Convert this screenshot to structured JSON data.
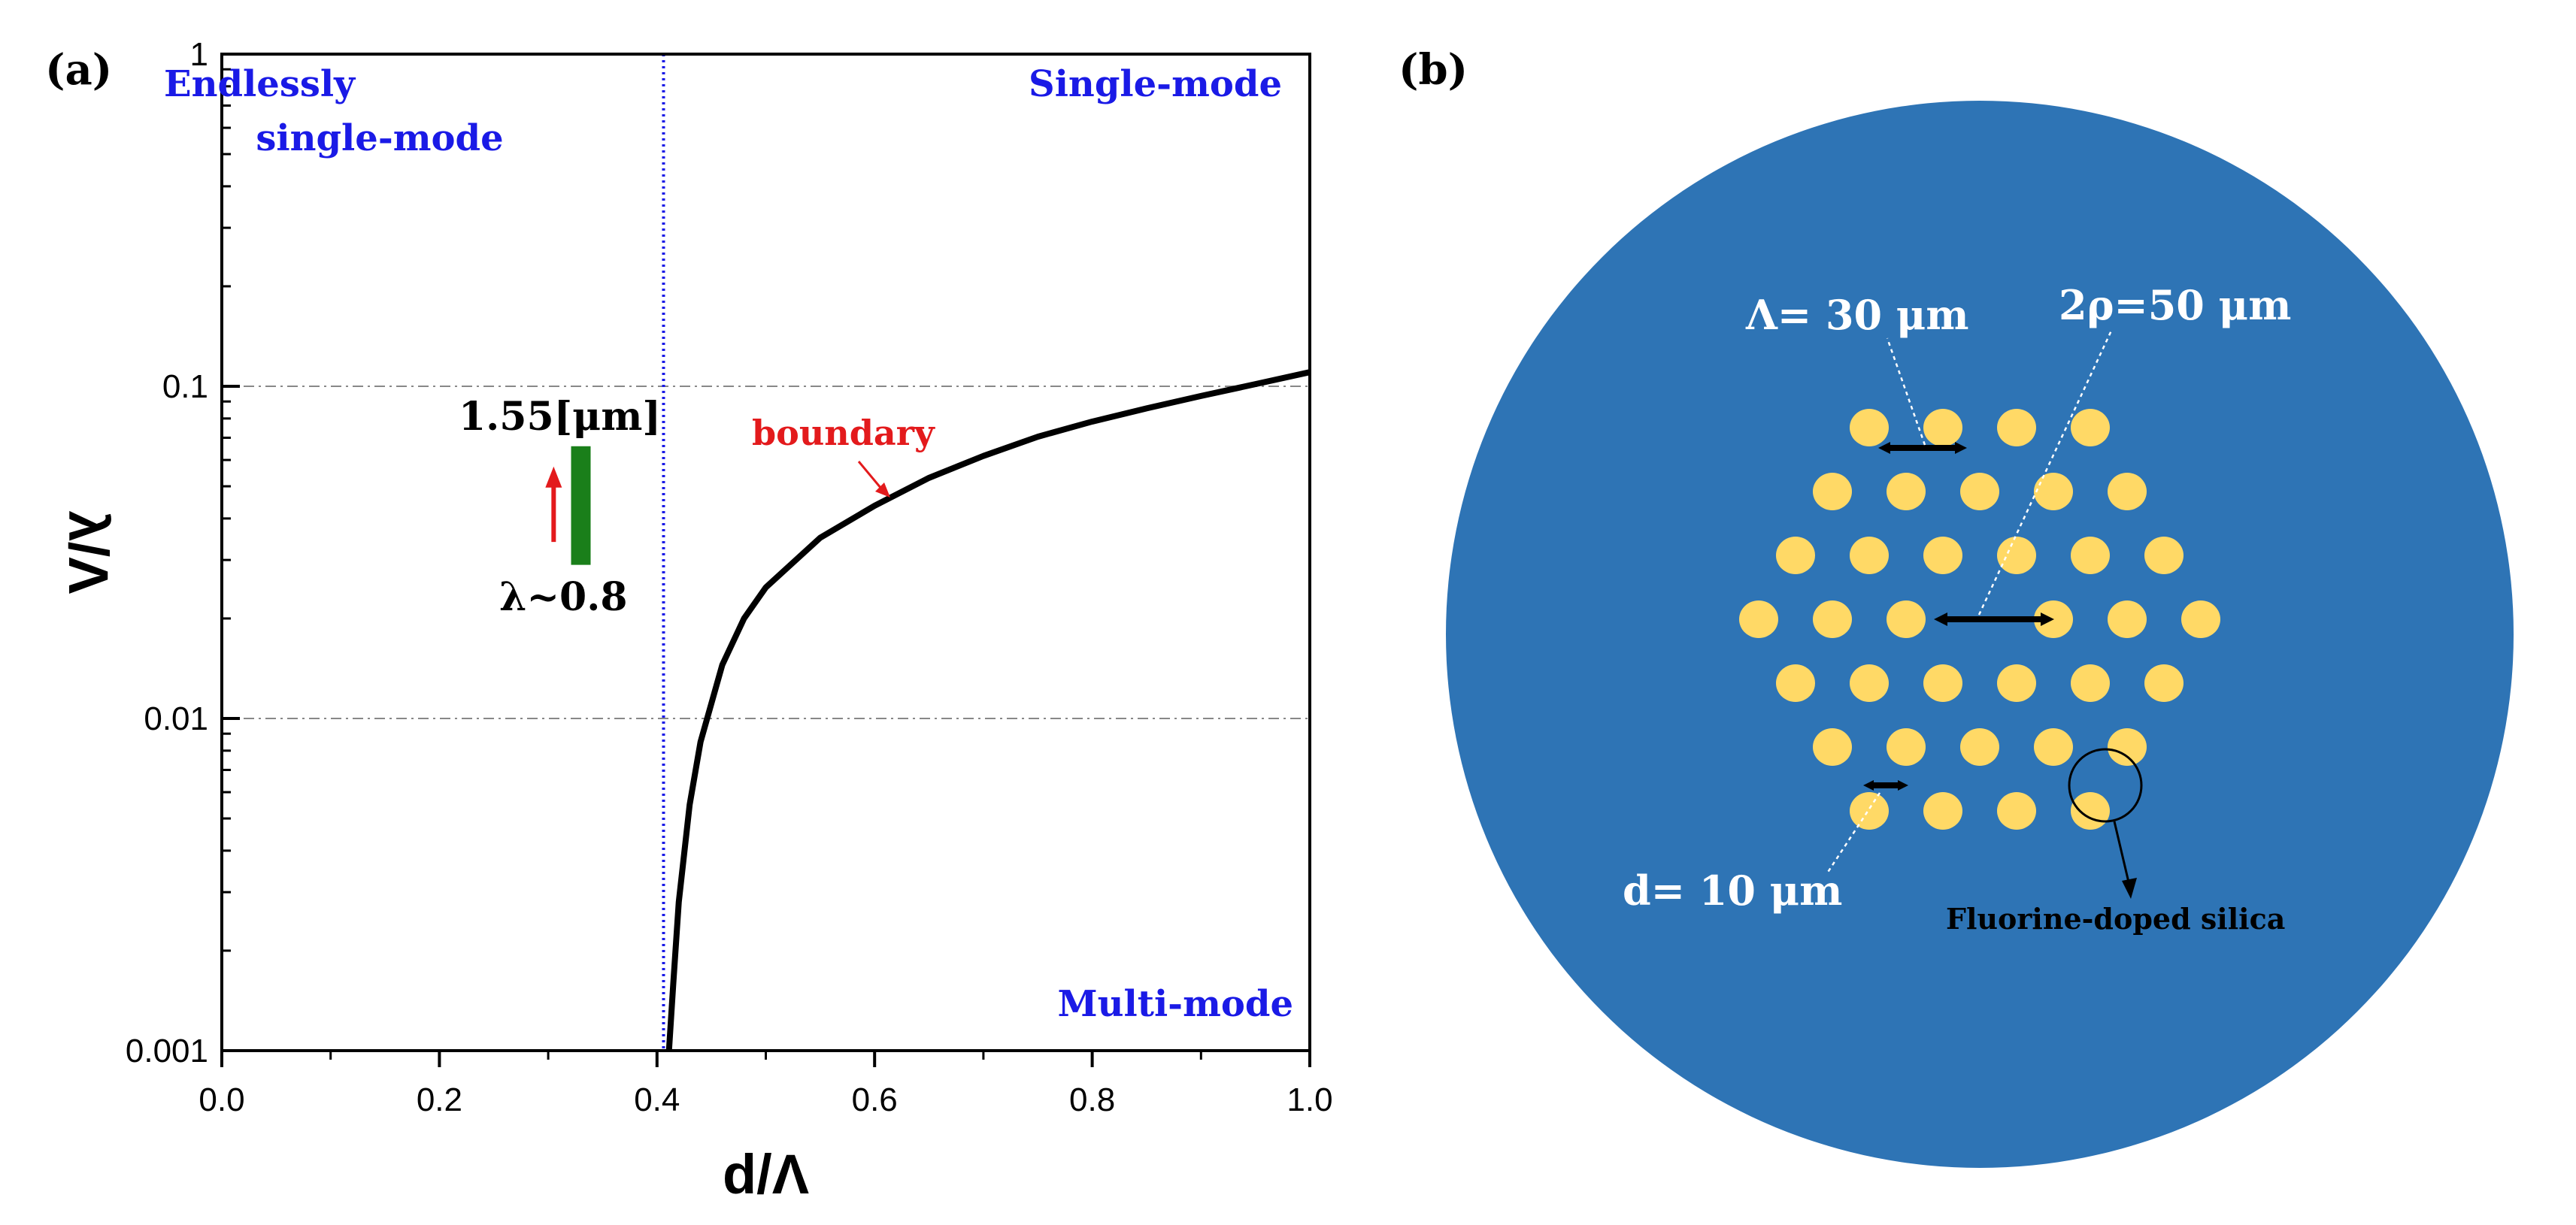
{
  "chart_data": {
    "type": "line",
    "panel_label": "(a)",
    "xlabel": "d/Λ",
    "ylabel": "λ/Λ",
    "xlim": [
      0.0,
      1.0
    ],
    "ylim": [
      0.001,
      1
    ],
    "yscale": "log",
    "x_ticks": [
      "0.0",
      "0.2",
      "0.4",
      "0.6",
      "0.8",
      "1.0"
    ],
    "y_ticks": [
      "0.001",
      "0.01",
      "0.1",
      "1"
    ],
    "grid": "horizontal dash-dot at each decade",
    "series": [
      {
        "name": "boundary",
        "color": "#000000",
        "x": [
          0.411,
          0.415,
          0.42,
          0.43,
          0.44,
          0.46,
          0.48,
          0.5,
          0.55,
          0.6,
          0.65,
          0.7,
          0.75,
          0.8,
          0.85,
          0.9,
          0.95,
          1.0
        ],
        "y": [
          0.001,
          0.0016,
          0.0028,
          0.0055,
          0.0085,
          0.0145,
          0.02,
          0.0248,
          0.035,
          0.0437,
          0.053,
          0.0617,
          0.0705,
          0.0783,
          0.0858,
          0.0935,
          0.1015,
          0.1103
        ]
      }
    ],
    "cutoff_line": {
      "x": 0.406,
      "color": "#1a1ae6",
      "style": "dotted"
    },
    "wavelength_bar": {
      "x": 0.33,
      "y_low": 0.029,
      "y_high": 0.066,
      "color": "#1a7f1a"
    },
    "arrow": {
      "x": 0.305,
      "y_from": 0.034,
      "y_to": 0.055,
      "color": "#e31a1c"
    },
    "annotations": {
      "endlessly_line1": "Endlessly",
      "endlessly_line2": "single-mode",
      "single_mode": "Single-mode",
      "multi_mode": "Multi-mode",
      "boundary": "boundary",
      "upper_wavelength": "1.55[μm]",
      "lower_wavelength": "λ~0.8"
    }
  },
  "fiber_diagram": {
    "panel_label": "(b)",
    "cladding_color": "#2e74b5",
    "hole_color": "#ffd966",
    "pitch_label": "Λ= 30 μm",
    "core_label": "2ρ=50 μm",
    "hole_label": "d= 10 μm",
    "material_label": "Fluorine-doped silica"
  }
}
